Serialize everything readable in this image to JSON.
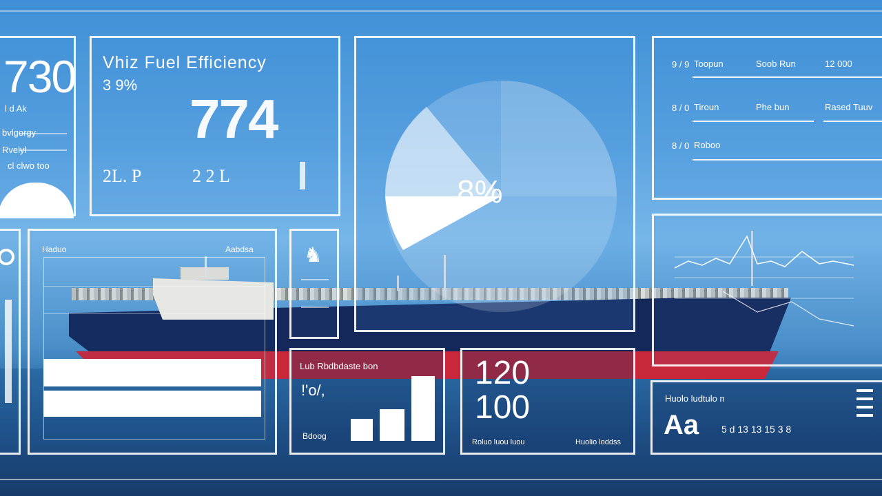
{
  "panel_left": {
    "big": "730",
    "line1": "l d Ak",
    "line2": "bvlgorgy",
    "line3": "Rvelyl",
    "line4": "cl clwo  too"
  },
  "fuel": {
    "title": "Vhiz Fuel Efficiency",
    "sub": "3 9%",
    "big": "774",
    "foot1": "2L. P",
    "foot2": "2 2 L"
  },
  "pie": {
    "label": "8%"
  },
  "list": {
    "rows": [
      {
        "num": "9 / 9",
        "a": "Toopun",
        "b": "Soob Run",
        "c": "12 000"
      },
      {
        "num": "8 / 0",
        "a": "Tiroun",
        "b": "Phe bun",
        "c": "Rased Tuuv"
      },
      {
        "num": "8 / 0",
        "a": "Roboo",
        "b": "",
        "c": ""
      }
    ]
  },
  "chart_bl": {
    "title": "Haduo",
    "title_r": "Aabdsa"
  },
  "bars_panel": {
    "title": "Lub Rbdbdaste bon",
    "value": "!'o/,",
    "foot": "Bdoog"
  },
  "nums_panel": {
    "l1": "120",
    "l2": "100",
    "foot_l": "Roluo luou luou",
    "foot_r": "Huolio loddss"
  },
  "legend_panel": {
    "title": "Huolo ludtulo n",
    "big": "Aa",
    "items": "5 d 13 13 15    3 8"
  },
  "colors": {
    "accent": "#ffffff",
    "hull": "#14285a",
    "hull_red": "#c8283a",
    "sky": "#5aa3e0"
  }
}
